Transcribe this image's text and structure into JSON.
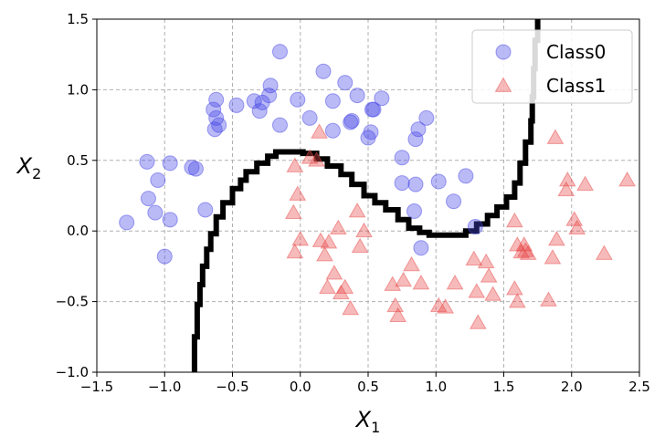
{
  "chart_data": {
    "type": "scatter",
    "title": "",
    "xlabel": "X",
    "xlabel_sub": "1",
    "ylabel": "X",
    "ylabel_sub": "2",
    "xlim": [
      -1.5,
      2.5
    ],
    "ylim": [
      -1.0,
      1.5
    ],
    "xticks": [
      -1.5,
      -1.0,
      -0.5,
      0.0,
      0.5,
      1.0,
      1.5,
      2.0,
      2.5
    ],
    "xtick_labels": [
      "−1.5",
      "−1.0",
      "−0.5",
      "0.0",
      "0.5",
      "1.0",
      "1.5",
      "2.0",
      "2.5"
    ],
    "yticks": [
      -1.0,
      -0.5,
      0.0,
      0.5,
      1.0,
      1.5
    ],
    "ytick_labels": [
      "−1.0",
      "−0.5",
      "0.0",
      "0.5",
      "1.0",
      "1.5"
    ],
    "grid": true,
    "legend_position": "top-right",
    "series": [
      {
        "name": "Class0",
        "marker": "circle",
        "color": "#4a4ae8",
        "points": [
          [
            -1.28,
            0.06
          ],
          [
            -1.13,
            0.49
          ],
          [
            -1.12,
            0.23
          ],
          [
            -1.07,
            0.13
          ],
          [
            -1.05,
            0.36
          ],
          [
            -1.0,
            -0.18
          ],
          [
            -0.96,
            0.48
          ],
          [
            -0.96,
            0.08
          ],
          [
            -0.8,
            0.45
          ],
          [
            -0.77,
            0.44
          ],
          [
            -0.7,
            0.15
          ],
          [
            -0.64,
            0.86
          ],
          [
            -0.63,
            0.72
          ],
          [
            -0.62,
            0.93
          ],
          [
            -0.62,
            0.8
          ],
          [
            -0.6,
            0.75
          ],
          [
            -0.47,
            0.89
          ],
          [
            -0.34,
            0.92
          ],
          [
            -0.3,
            0.85
          ],
          [
            -0.28,
            0.91
          ],
          [
            -0.23,
            0.96
          ],
          [
            -0.22,
            1.03
          ],
          [
            -0.15,
            1.27
          ],
          [
            -0.15,
            0.75
          ],
          [
            -0.02,
            0.93
          ],
          [
            0.07,
            0.8
          ],
          [
            0.17,
            1.13
          ],
          [
            0.24,
            0.71
          ],
          [
            0.24,
            0.92
          ],
          [
            0.33,
            1.05
          ],
          [
            0.37,
            0.77
          ],
          [
            0.38,
            0.78
          ],
          [
            0.42,
            0.96
          ],
          [
            0.5,
            0.66
          ],
          [
            0.52,
            0.7
          ],
          [
            0.53,
            0.86
          ],
          [
            0.54,
            0.86
          ],
          [
            0.6,
            0.94
          ],
          [
            0.75,
            0.52
          ],
          [
            0.75,
            0.34
          ],
          [
            0.84,
            0.14
          ],
          [
            0.85,
            0.65
          ],
          [
            0.87,
            0.72
          ],
          [
            0.89,
            -0.12
          ],
          [
            0.93,
            0.8
          ],
          [
            1.02,
            0.35
          ],
          [
            1.13,
            0.21
          ],
          [
            1.22,
            0.39
          ],
          [
            1.29,
            0.03
          ],
          [
            0.85,
            0.33
          ]
        ]
      },
      {
        "name": "Class1",
        "marker": "triangle",
        "color": "#e84a4a",
        "points": [
          [
            -0.04,
            0.46
          ],
          [
            -0.05,
            0.13
          ],
          [
            -0.02,
            0.26
          ],
          [
            0.0,
            -0.06
          ],
          [
            -0.04,
            -0.15
          ],
          [
            0.07,
            0.52
          ],
          [
            0.12,
            0.5
          ],
          [
            0.14,
            0.7
          ],
          [
            0.15,
            -0.07
          ],
          [
            0.18,
            -0.17
          ],
          [
            0.2,
            -0.4
          ],
          [
            0.21,
            -0.08
          ],
          [
            0.25,
            -0.3
          ],
          [
            0.28,
            0.02
          ],
          [
            0.3,
            -0.44
          ],
          [
            0.33,
            -0.4
          ],
          [
            0.37,
            -0.55
          ],
          [
            0.42,
            0.14
          ],
          [
            0.44,
            -0.11
          ],
          [
            0.47,
            0.0
          ],
          [
            0.68,
            -0.38
          ],
          [
            0.7,
            -0.53
          ],
          [
            0.72,
            -0.6
          ],
          [
            0.76,
            -0.35
          ],
          [
            0.82,
            -0.24
          ],
          [
            0.89,
            -0.37
          ],
          [
            1.02,
            -0.53
          ],
          [
            1.07,
            -0.54
          ],
          [
            1.14,
            -0.37
          ],
          [
            1.28,
            -0.2
          ],
          [
            1.3,
            -0.43
          ],
          [
            1.31,
            -0.65
          ],
          [
            1.37,
            -0.22
          ],
          [
            1.39,
            -0.32
          ],
          [
            1.42,
            -0.45
          ],
          [
            1.58,
            0.07
          ],
          [
            1.58,
            -0.41
          ],
          [
            1.6,
            -0.1
          ],
          [
            1.6,
            -0.5
          ],
          [
            1.63,
            -0.15
          ],
          [
            1.65,
            -0.1
          ],
          [
            1.66,
            -0.14
          ],
          [
            1.68,
            -0.16
          ],
          [
            1.83,
            -0.49
          ],
          [
            1.86,
            -0.19
          ],
          [
            1.88,
            0.66
          ],
          [
            1.89,
            -0.06
          ],
          [
            1.96,
            0.29
          ],
          [
            1.97,
            0.36
          ],
          [
            2.02,
            0.08
          ],
          [
            2.04,
            0.02
          ],
          [
            2.1,
            0.33
          ],
          [
            2.24,
            -0.16
          ],
          [
            2.41,
            0.36
          ]
        ]
      }
    ],
    "decision_boundary": [
      [
        -0.8,
        -1.0
      ],
      [
        -0.78,
        -0.75
      ],
      [
        -0.76,
        -0.52
      ],
      [
        -0.74,
        -0.38
      ],
      [
        -0.72,
        -0.25
      ],
      [
        -0.69,
        -0.13
      ],
      [
        -0.66,
        -0.02
      ],
      [
        -0.62,
        0.1
      ],
      [
        -0.57,
        0.2
      ],
      [
        -0.5,
        0.3
      ],
      [
        -0.44,
        0.36
      ],
      [
        -0.4,
        0.42
      ],
      [
        -0.32,
        0.48
      ],
      [
        -0.24,
        0.53
      ],
      [
        -0.18,
        0.56
      ],
      [
        -0.04,
        0.56
      ],
      [
        0.02,
        0.55
      ],
      [
        0.12,
        0.51
      ],
      [
        0.2,
        0.46
      ],
      [
        0.3,
        0.4
      ],
      [
        0.38,
        0.33
      ],
      [
        0.47,
        0.25
      ],
      [
        0.55,
        0.2
      ],
      [
        0.63,
        0.15
      ],
      [
        0.72,
        0.08
      ],
      [
        0.8,
        0.02
      ],
      [
        0.88,
        -0.01
      ],
      [
        0.95,
        -0.03
      ],
      [
        1.0,
        -0.03
      ],
      [
        1.08,
        -0.03
      ],
      [
        1.14,
        -0.03
      ],
      [
        1.22,
        0.0
      ],
      [
        1.3,
        0.05
      ],
      [
        1.38,
        0.11
      ],
      [
        1.45,
        0.17
      ],
      [
        1.52,
        0.24
      ],
      [
        1.58,
        0.34
      ],
      [
        1.62,
        0.48
      ],
      [
        1.66,
        0.63
      ],
      [
        1.7,
        0.78
      ],
      [
        1.71,
        0.95
      ],
      [
        1.72,
        1.15
      ],
      [
        1.73,
        1.35
      ],
      [
        1.75,
        1.5
      ]
    ]
  }
}
